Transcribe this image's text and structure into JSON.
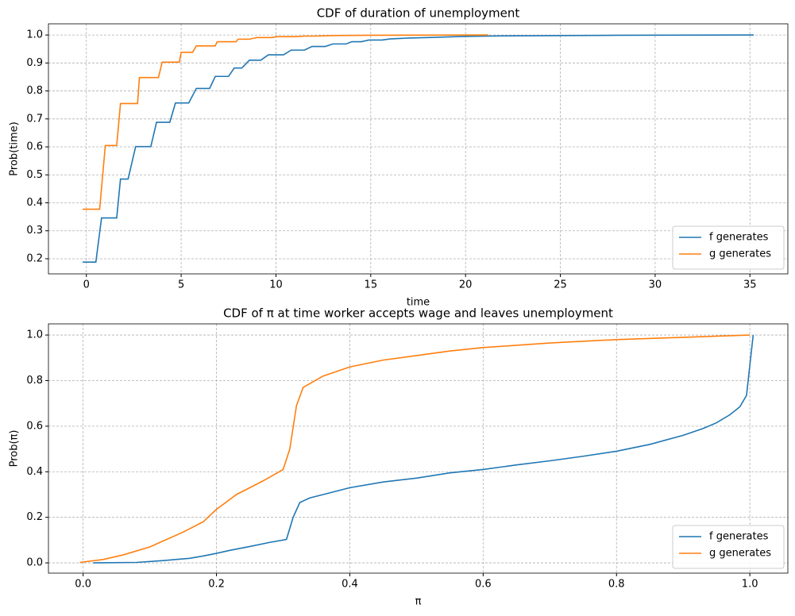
{
  "chart_data": [
    {
      "type": "line",
      "title": "CDF of duration of unemployment",
      "xlabel": "time",
      "ylabel": "Prob(time)",
      "xlim": [
        -2.0,
        37.0
      ],
      "ylim": [
        0.146,
        1.04
      ],
      "xticks": [
        0,
        5,
        10,
        15,
        20,
        25,
        30,
        35
      ],
      "yticks": [
        0.2,
        0.3,
        0.4,
        0.5,
        0.6,
        0.7,
        0.8,
        0.9,
        {
          "value": 1.0,
          "label": "1.0"
        }
      ],
      "grid": true,
      "legend": "lower right",
      "series": [
        {
          "name": "f generates",
          "color": "#1f77b4",
          "x": [
            -0.2,
            0.5,
            0.8,
            1.6,
            1.8,
            2.2,
            2.6,
            3.4,
            3.7,
            4.4,
            4.7,
            5.4,
            5.8,
            6.5,
            6.8,
            7.5,
            7.8,
            8.2,
            8.6,
            9.2,
            9.6,
            10.4,
            10.8,
            11.5,
            11.9,
            12.6,
            13.0,
            13.7,
            14.0,
            14.5,
            14.9,
            15.6,
            16.0,
            17.0,
            18.0,
            19.0,
            20.0,
            22.0,
            25.0,
            28.0,
            35.2
          ],
          "values": [
            0.188,
            0.188,
            0.346,
            0.346,
            0.485,
            0.485,
            0.601,
            0.601,
            0.688,
            0.688,
            0.757,
            0.757,
            0.809,
            0.809,
            0.852,
            0.852,
            0.882,
            0.882,
            0.91,
            0.91,
            0.929,
            0.929,
            0.946,
            0.946,
            0.959,
            0.959,
            0.968,
            0.968,
            0.976,
            0.976,
            0.982,
            0.982,
            0.986,
            0.989,
            0.991,
            0.993,
            0.995,
            0.997,
            0.998,
            0.999,
            1.0
          ]
        },
        {
          "name": "g generates",
          "color": "#ff7f0e",
          "x": [
            -0.2,
            0.7,
            1.0,
            1.6,
            1.8,
            2.7,
            2.8,
            3.8,
            4.0,
            4.9,
            5.0,
            5.6,
            5.8,
            6.8,
            6.9,
            7.9,
            8.0,
            8.6,
            9.0,
            9.8,
            10.0,
            11.0,
            11.5,
            12.0,
            13.0,
            15.0,
            21.2
          ],
          "values": [
            0.377,
            0.377,
            0.605,
            0.605,
            0.755,
            0.755,
            0.848,
            0.848,
            0.903,
            0.903,
            0.938,
            0.938,
            0.961,
            0.961,
            0.976,
            0.976,
            0.985,
            0.985,
            0.991,
            0.991,
            0.994,
            0.994,
            0.996,
            0.996,
            0.998,
            0.999,
            1.0
          ]
        }
      ]
    },
    {
      "type": "line",
      "title": "CDF of π at time worker accepts wage and leaves unemployment",
      "xlabel": "π",
      "ylabel": "Prob(π)",
      "xlim": [
        -0.052,
        1.057
      ],
      "ylim": [
        -0.045,
        1.049
      ],
      "xticks": [
        {
          "value": 0.0,
          "label": "0.0"
        },
        0.2,
        0.4,
        0.6,
        0.8,
        {
          "value": 1.0,
          "label": "1.0"
        }
      ],
      "yticks": [
        {
          "value": 0.0,
          "label": "0.0"
        },
        0.2,
        0.4,
        0.6,
        0.8,
        {
          "value": 1.0,
          "label": "1.0"
        }
      ],
      "grid": true,
      "legend": "lower right",
      "series": [
        {
          "name": "f generates",
          "color": "#1f77b4",
          "x": [
            0.015,
            0.08,
            0.12,
            0.16,
            0.18,
            0.2,
            0.22,
            0.25,
            0.28,
            0.305,
            0.315,
            0.325,
            0.34,
            0.36,
            0.4,
            0.45,
            0.5,
            0.55,
            0.6,
            0.65,
            0.7,
            0.75,
            0.8,
            0.85,
            0.9,
            0.93,
            0.95,
            0.97,
            0.985,
            0.995,
            1.005
          ],
          "values": [
            0.0,
            0.002,
            0.01,
            0.02,
            0.03,
            0.042,
            0.055,
            0.072,
            0.09,
            0.103,
            0.2,
            0.265,
            0.285,
            0.3,
            0.33,
            0.355,
            0.372,
            0.395,
            0.41,
            0.43,
            0.448,
            0.468,
            0.49,
            0.52,
            0.56,
            0.59,
            0.615,
            0.65,
            0.685,
            0.735,
            1.0
          ]
        },
        {
          "name": "g generates",
          "color": "#ff7f0e",
          "x": [
            -0.005,
            0.03,
            0.06,
            0.1,
            0.15,
            0.18,
            0.2,
            0.23,
            0.27,
            0.3,
            0.31,
            0.32,
            0.33,
            0.36,
            0.4,
            0.45,
            0.5,
            0.55,
            0.6,
            0.7,
            0.8,
            0.9,
            1.0
          ],
          "values": [
            0.002,
            0.015,
            0.035,
            0.07,
            0.135,
            0.18,
            0.235,
            0.3,
            0.36,
            0.41,
            0.5,
            0.69,
            0.77,
            0.82,
            0.86,
            0.89,
            0.91,
            0.93,
            0.945,
            0.965,
            0.98,
            0.99,
            1.0
          ]
        }
      ]
    }
  ]
}
